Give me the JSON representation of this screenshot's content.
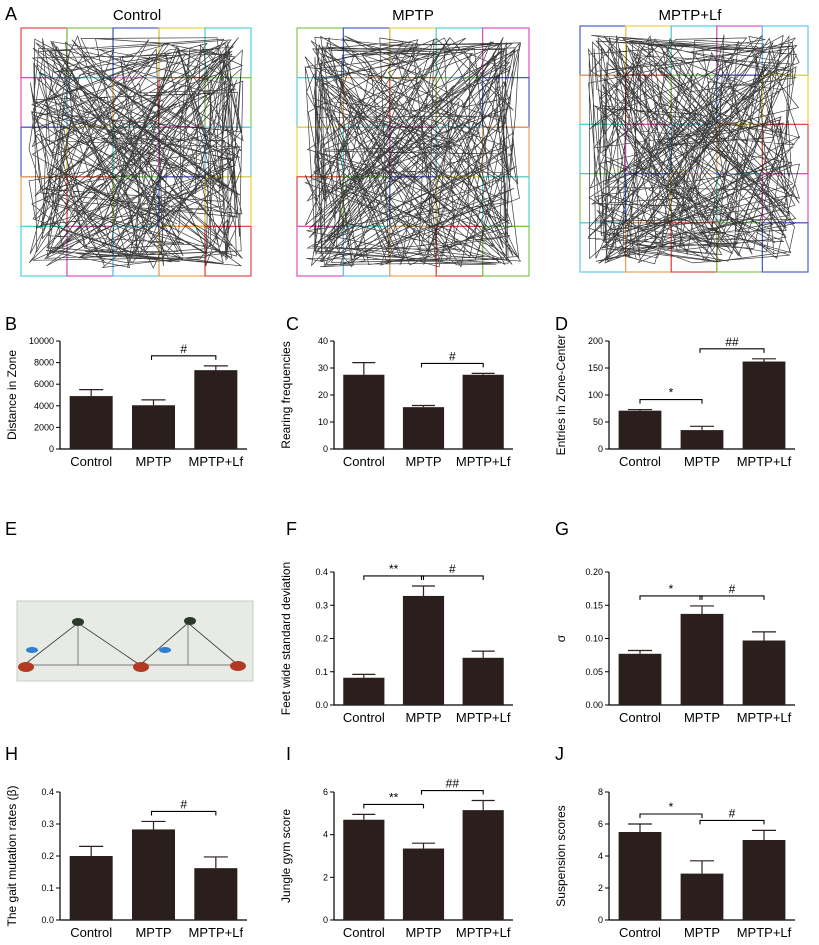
{
  "figure": {
    "panel_labels": [
      "A",
      "B",
      "C",
      "D",
      "E",
      "F",
      "G",
      "H",
      "I",
      "J"
    ]
  },
  "open_field": {
    "titles": [
      "Control",
      "MPTP",
      "MPTP+Lf"
    ],
    "grid_colors": [
      "#e04848",
      "#7ec850",
      "#4a5fcf",
      "#f0d040",
      "#50d0d8",
      "#e050c0",
      "#60c8e8",
      "#f0a050"
    ]
  },
  "gait_photo": {
    "background": "#e8ebe5",
    "paint_colors": [
      "#b33a22",
      "#2f7fd0"
    ]
  },
  "chart_data": [
    {
      "type": "bar",
      "panel": "B",
      "categories": [
        "Control",
        "MPTP",
        "MPTP+Lf"
      ],
      "values": [
        4900,
        4050,
        7300
      ],
      "errors": [
        600,
        500,
        400
      ],
      "ylabel": "Distance in Zone",
      "ylim": [
        0,
        10000
      ],
      "yticks": [
        "0",
        "2000",
        "4000",
        "6000",
        "8000",
        "10000"
      ],
      "annotations": [
        {
          "from": 1,
          "to": 2,
          "text": "#"
        }
      ]
    },
    {
      "type": "bar",
      "panel": "C",
      "categories": [
        "Control",
        "MPTP",
        "MPTP+Lf"
      ],
      "values": [
        27.5,
        15.5,
        27.5
      ],
      "errors": [
        4.5,
        0.6,
        0.5
      ],
      "ylabel": "Rearing frequencies",
      "ylim": [
        0,
        40
      ],
      "yticks": [
        "0",
        "10",
        "20",
        "30",
        "40"
      ],
      "annotations": [
        {
          "from": 1,
          "to": 2,
          "text": "#"
        }
      ]
    },
    {
      "type": "bar",
      "panel": "D",
      "categories": [
        "Control",
        "MPTP",
        "MPTP+Lf"
      ],
      "values": [
        71,
        35,
        162
      ],
      "errors": [
        2,
        7,
        5
      ],
      "ylabel": "Entries in Zone-Center",
      "ylim": [
        0,
        200
      ],
      "yticks": [
        "0",
        "50",
        "100",
        "150",
        "200"
      ],
      "annotations": [
        {
          "from": 0,
          "to": 1,
          "text": "*"
        },
        {
          "from": 1,
          "to": 2,
          "text": "##"
        }
      ]
    },
    {
      "type": "bar",
      "panel": "F",
      "categories": [
        "Control",
        "MPTP",
        "MPTP+Lf"
      ],
      "values": [
        0.082,
        0.328,
        0.142
      ],
      "errors": [
        0.01,
        0.03,
        0.02
      ],
      "ylabel": "Feet wide standard deviation",
      "ylim": [
        0,
        0.4
      ],
      "yticks": [
        "0.0",
        "0.1",
        "0.2",
        "0.3",
        "0.4"
      ],
      "annotations": [
        {
          "from": 0,
          "to": 1,
          "text": "**"
        },
        {
          "from": 1,
          "to": 2,
          "text": "#"
        }
      ]
    },
    {
      "type": "bar",
      "panel": "G",
      "categories": [
        "Control",
        "MPTP",
        "MPTP+Lf"
      ],
      "values": [
        0.077,
        0.137,
        0.097
      ],
      "errors": [
        0.005,
        0.012,
        0.013
      ],
      "ylabel": "σ",
      "ylim": [
        0,
        0.2
      ],
      "yticks": [
        "0.00",
        "0.05",
        "0.10",
        "0.15",
        "0.20"
      ],
      "annotations": [
        {
          "from": 0,
          "to": 1,
          "text": "*"
        },
        {
          "from": 1,
          "to": 2,
          "text": "#"
        }
      ]
    },
    {
      "type": "bar",
      "panel": "H",
      "categories": [
        "Control",
        "MPTP",
        "MPTP+Lf"
      ],
      "values": [
        0.2,
        0.283,
        0.162
      ],
      "errors": [
        0.03,
        0.025,
        0.035
      ],
      "ylabel": "The gait mutation rates (β)",
      "ylim": [
        0,
        0.4
      ],
      "yticks": [
        "0.0",
        "0.1",
        "0.2",
        "0.3",
        "0.4"
      ],
      "annotations": [
        {
          "from": 1,
          "to": 2,
          "text": "#"
        }
      ]
    },
    {
      "type": "bar",
      "panel": "I",
      "categories": [
        "Control",
        "MPTP",
        "MPTP+Lf"
      ],
      "values": [
        4.7,
        3.35,
        5.15
      ],
      "errors": [
        0.25,
        0.25,
        0.45
      ],
      "ylabel": "Jungle gym score",
      "ylim": [
        0,
        6
      ],
      "yticks": [
        "0",
        "2",
        "4",
        "6"
      ],
      "annotations": [
        {
          "from": 0,
          "to": 1,
          "text": "**"
        },
        {
          "from": 1,
          "to": 2,
          "text": "##"
        }
      ]
    },
    {
      "type": "bar",
      "panel": "J",
      "categories": [
        "Control",
        "MPTP",
        "MPTP+Lf"
      ],
      "values": [
        5.5,
        2.9,
        5.0
      ],
      "errors": [
        0.5,
        0.8,
        0.6
      ],
      "ylabel": "Suspension scores",
      "ylim": [
        0,
        8
      ],
      "yticks": [
        "0",
        "2",
        "4",
        "6",
        "8"
      ],
      "annotations": [
        {
          "from": 0,
          "to": 1,
          "text": "*"
        },
        {
          "from": 1,
          "to": 2,
          "text": "#"
        }
      ]
    }
  ],
  "style": {
    "bar_color": "#2b1f1d",
    "axis_color": "#000000"
  }
}
